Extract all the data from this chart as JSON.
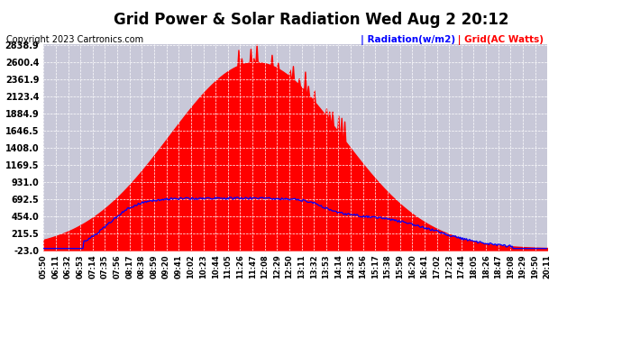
{
  "title": "Grid Power & Solar Radiation Wed Aug 2 20:12",
  "copyright": "Copyright 2023 Cartronics.com",
  "legend_radiation": "Radiation(w/m2)",
  "legend_grid": "Grid(AC Watts)",
  "ymin": -23.0,
  "ymax": 2838.9,
  "yticks": [
    -23.0,
    215.5,
    454.0,
    692.5,
    931.0,
    1169.5,
    1408.0,
    1646.5,
    1884.9,
    2123.4,
    2361.9,
    2600.4,
    2838.9
  ],
  "bg_color": "#ffffff",
  "plot_bg_color": "#c8c8d8",
  "grid_color": "#ffffff",
  "fill_red_color": "#ff0000",
  "line_blue_color": "#0000ff",
  "title_fontsize": 12,
  "copyright_fontsize": 7,
  "tick_label_fontsize": 6,
  "ytick_label_fontsize": 7
}
